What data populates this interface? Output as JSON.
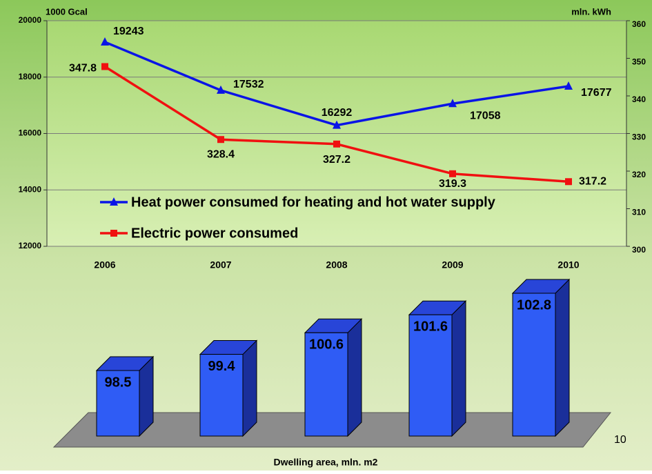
{
  "chart_data": [
    {
      "type": "line",
      "y_label": "1000 Gcal",
      "y2_label": "mln. kWh",
      "categories": [
        "2006",
        "2007",
        "2008",
        "2009",
        "2010"
      ],
      "series": [
        {
          "name": "Heat power consumed for heating and hot water supply",
          "color": "#0a14e6",
          "values": [
            19243,
            17532,
            16292,
            17058,
            17677
          ]
        },
        {
          "name": "Electric power consumed",
          "color": "#f01010",
          "axis": "y2",
          "values": [
            347.8,
            328.4,
            327.2,
            319.3,
            317.2
          ]
        }
      ],
      "ylim": [
        12000,
        20000
      ],
      "yticks": [
        12000,
        14000,
        16000,
        18000,
        20000
      ],
      "y2lim": [
        300,
        360
      ],
      "y2ticks": [
        300,
        310,
        320,
        330,
        340,
        350,
        360
      ],
      "grid": true,
      "legend": "lower left"
    },
    {
      "type": "bar3d",
      "x_label": "Dwelling area, mln. m2",
      "categories": [
        "2006",
        "2007",
        "2008",
        "2009",
        "2010"
      ],
      "values": [
        98.5,
        99.4,
        100.6,
        101.6,
        102.8
      ],
      "color": "#2f5cf5"
    }
  ],
  "page_number": "10"
}
